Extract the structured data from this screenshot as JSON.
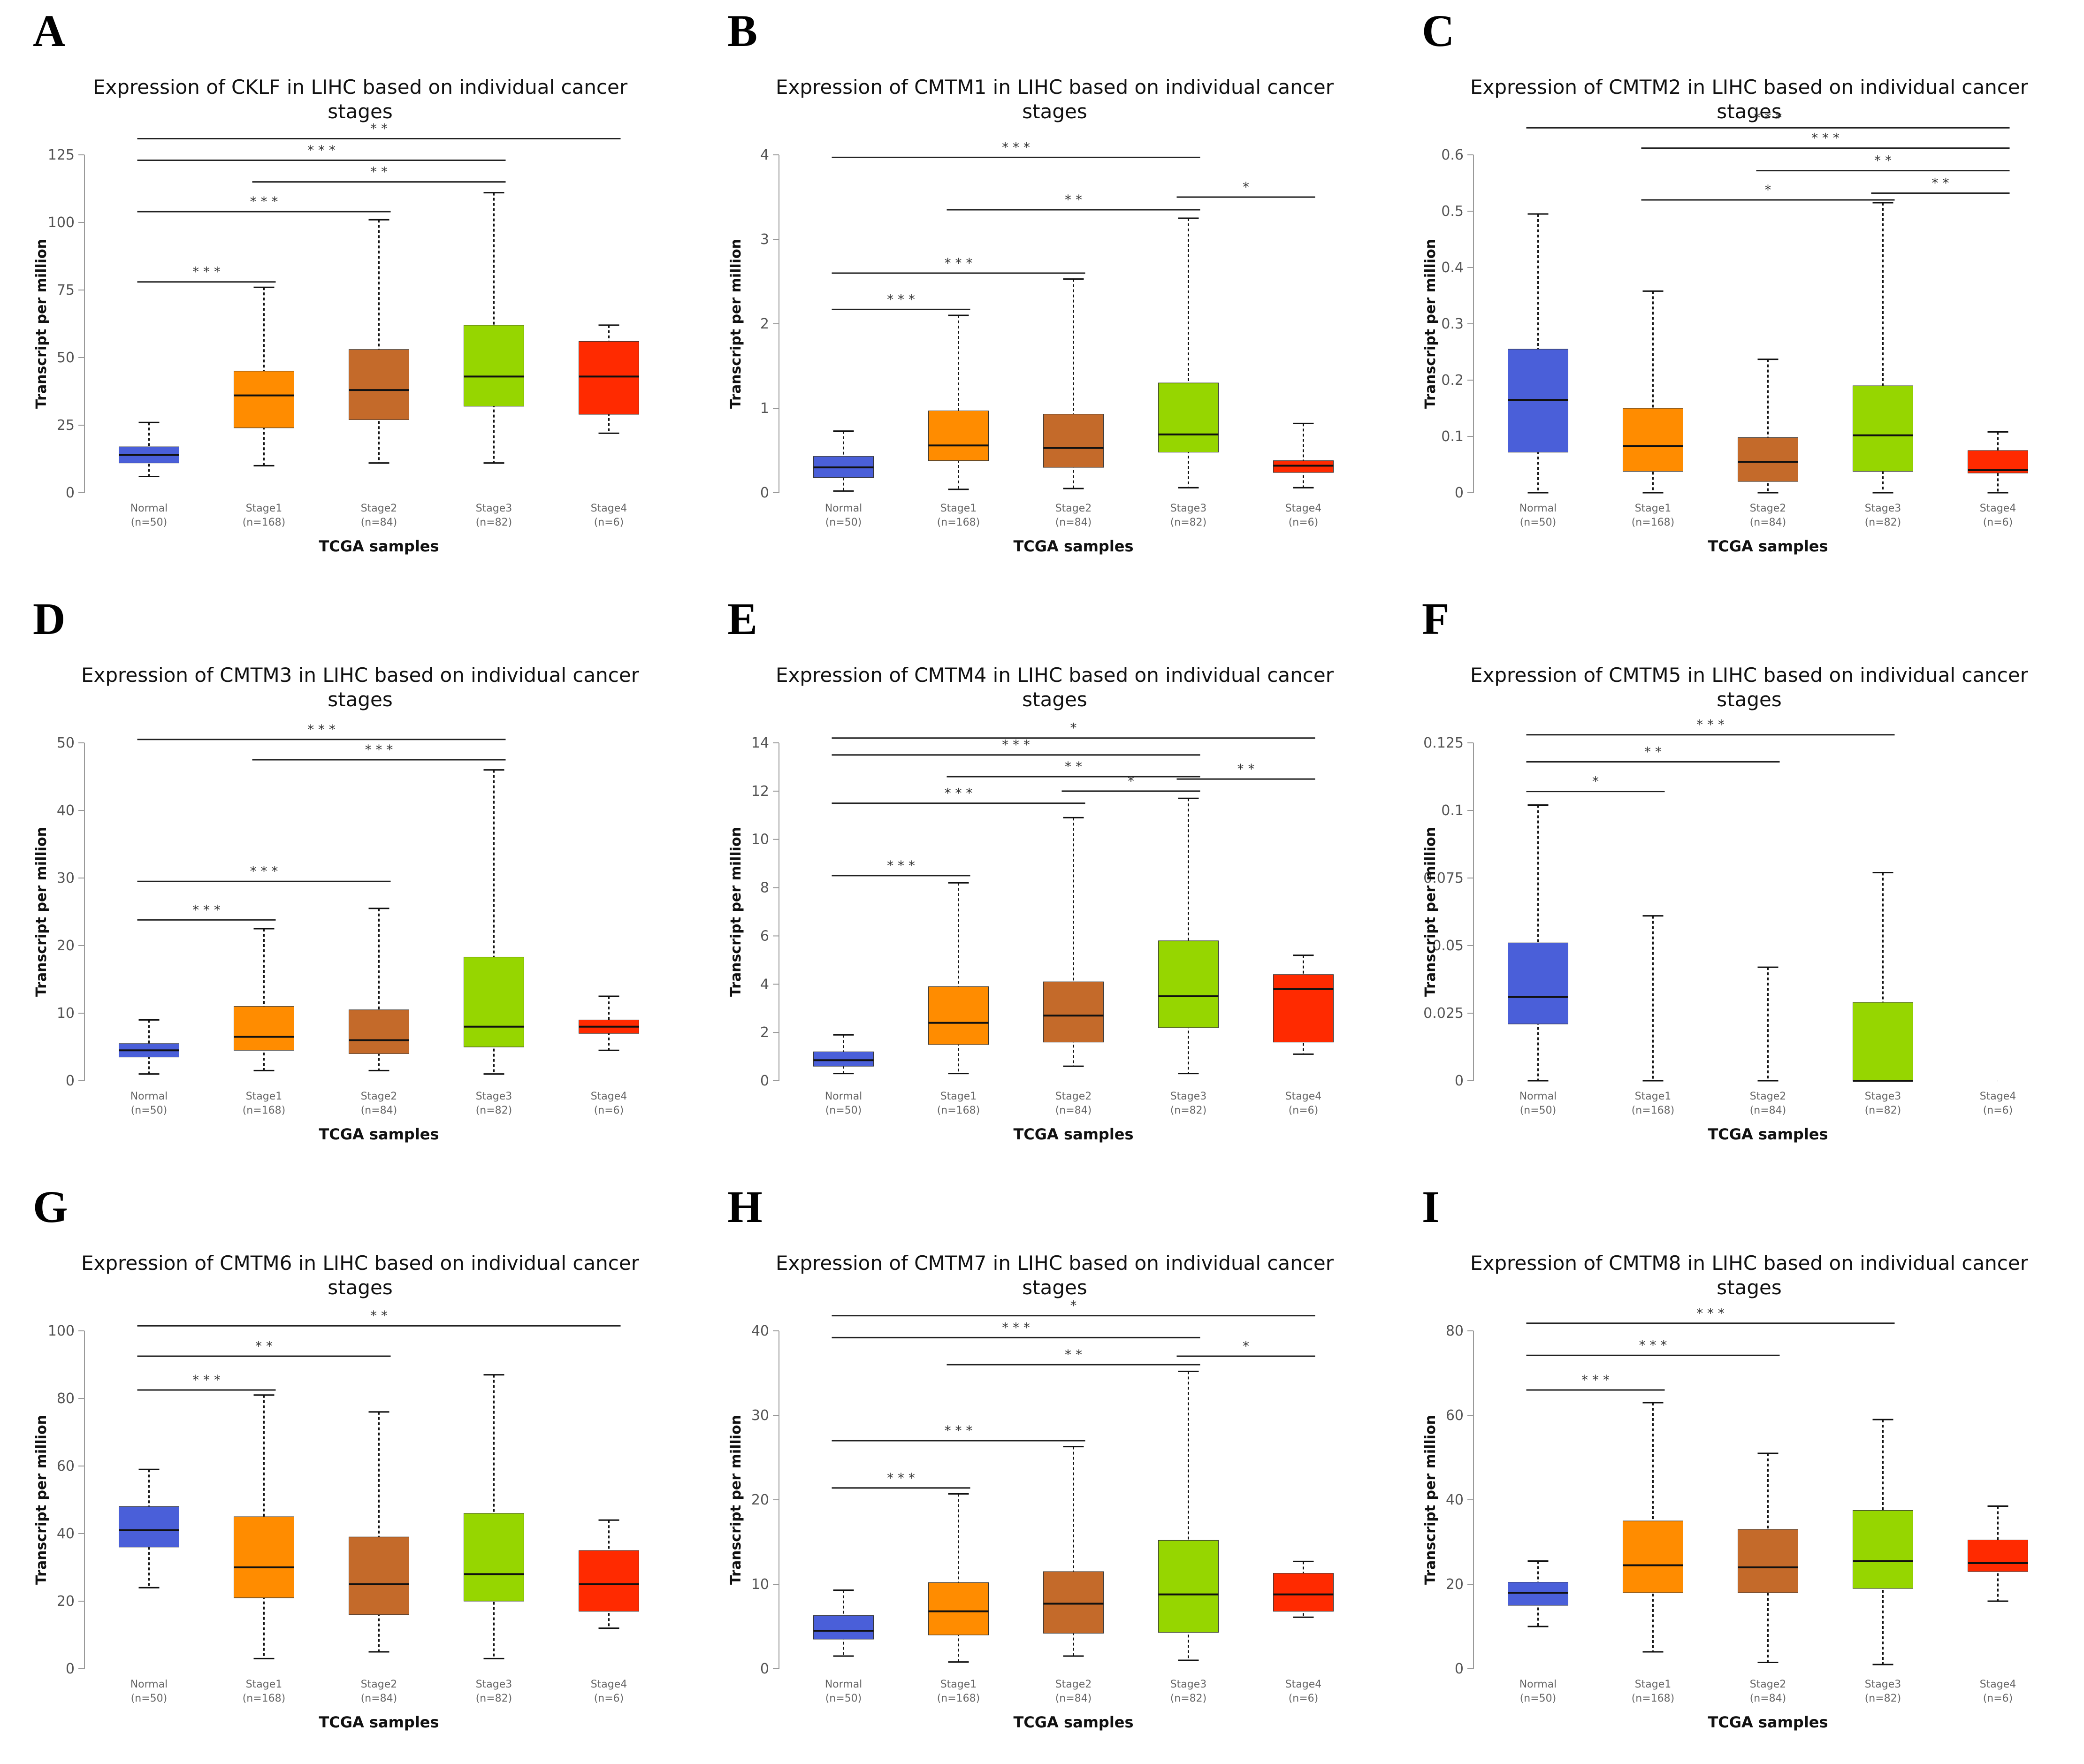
{
  "colors": {
    "Normal": "#4a5fd9",
    "Stage1": "#ff8c00",
    "Stage2": "#c46a2a",
    "Stage3": "#96d600",
    "Stage4": "#ff2a00"
  },
  "common": {
    "xlabel": "TCGA samples",
    "ylabel": "Transcript per million",
    "categories": [
      "Normal",
      "Stage1",
      "Stage2",
      "Stage3",
      "Stage4"
    ],
    "counts": [
      "(n=50)",
      "(n=168)",
      "(n=84)",
      "(n=82)",
      "(n=6)"
    ]
  },
  "chart_data": [
    {
      "panel": "A",
      "type": "box",
      "title_lines": [
        "Expression of CKLF in LIHC based on individual cancer",
        "stages"
      ],
      "ylim": [
        0,
        125
      ],
      "yticks": [
        "0",
        "25",
        "50",
        "75",
        "100",
        "125"
      ],
      "ytick_values": [
        0,
        25,
        50,
        75,
        100,
        125
      ],
      "boxes": [
        {
          "min": 6,
          "q1": 11,
          "median": 14,
          "q3": 17,
          "max": 26
        },
        {
          "min": 10,
          "q1": 24,
          "median": 36,
          "q3": 45,
          "max": 76
        },
        {
          "min": 11,
          "q1": 27,
          "median": 38,
          "q3": 53,
          "max": 101
        },
        {
          "min": 11,
          "q1": 32,
          "median": 43,
          "q3": 62,
          "max": 111
        },
        {
          "min": 22,
          "q1": 29,
          "median": 43,
          "q3": 56,
          "max": 62
        }
      ],
      "significance": [
        {
          "from": 0,
          "to": 4,
          "level": 131,
          "stars": "* *"
        },
        {
          "from": 0,
          "to": 3,
          "level": 123,
          "stars": "* * *"
        },
        {
          "from": 1,
          "to": 3,
          "level": 115,
          "stars": "* *"
        },
        {
          "from": 0,
          "to": 2,
          "level": 104,
          "stars": "* * *"
        },
        {
          "from": 0,
          "to": 1,
          "level": 78,
          "stars": "* * *"
        }
      ]
    },
    {
      "panel": "B",
      "type": "box",
      "title_lines": [
        "Expression of CMTM1 in LIHC based on individual cancer",
        "stages"
      ],
      "ylim": [
        0,
        4
      ],
      "yticks": [
        "0",
        "1",
        "2",
        "3",
        "4"
      ],
      "ytick_values": [
        0,
        1,
        2,
        3,
        4
      ],
      "boxes": [
        {
          "min": 0.02,
          "q1": 0.18,
          "median": 0.3,
          "q3": 0.43,
          "max": 0.73
        },
        {
          "min": 0.04,
          "q1": 0.38,
          "median": 0.56,
          "q3": 0.97,
          "max": 2.1
        },
        {
          "min": 0.05,
          "q1": 0.3,
          "median": 0.53,
          "q3": 0.93,
          "max": 2.53
        },
        {
          "min": 0.06,
          "q1": 0.48,
          "median": 0.69,
          "q3": 1.3,
          "max": 3.25
        },
        {
          "min": 0.06,
          "q1": 0.24,
          "median": 0.32,
          "q3": 0.38,
          "max": 0.82
        }
      ],
      "significance": [
        {
          "from": 0,
          "to": 3,
          "level": 3.97,
          "stars": "* * *"
        },
        {
          "from": 3,
          "to": 4,
          "level": 3.5,
          "stars": "*"
        },
        {
          "from": 1,
          "to": 3,
          "level": 3.35,
          "stars": "* *"
        },
        {
          "from": 0,
          "to": 2,
          "level": 2.6,
          "stars": "* * *"
        },
        {
          "from": 0,
          "to": 1,
          "level": 2.17,
          "stars": "* * *"
        }
      ]
    },
    {
      "panel": "C",
      "type": "box",
      "title_lines": [
        "Expression of CMTM2 in LIHC based on individual cancer",
        "stages"
      ],
      "ylim": [
        0,
        0.6
      ],
      "yticks": [
        "0",
        "0.1",
        "0.2",
        "0.3",
        "0.4",
        "0.5",
        "0.6"
      ],
      "ytick_values": [
        0,
        0.1,
        0.2,
        0.3,
        0.4,
        0.5,
        0.6
      ],
      "boxes": [
        {
          "min": 0,
          "q1": 0.072,
          "median": 0.165,
          "q3": 0.255,
          "max": 0.495
        },
        {
          "min": 0,
          "q1": 0.038,
          "median": 0.083,
          "q3": 0.15,
          "max": 0.358
        },
        {
          "min": 0,
          "q1": 0.02,
          "median": 0.055,
          "q3": 0.098,
          "max": 0.237
        },
        {
          "min": 0,
          "q1": 0.038,
          "median": 0.102,
          "q3": 0.19,
          "max": 0.515
        },
        {
          "min": 0,
          "q1": 0.035,
          "median": 0.04,
          "q3": 0.075,
          "max": 0.108
        }
      ],
      "significance": [
        {
          "from": 0,
          "to": 4,
          "level": 0.648,
          "stars": "* * *"
        },
        {
          "from": 1,
          "to": 4,
          "level": 0.612,
          "stars": "* * *"
        },
        {
          "from": 2,
          "to": 4,
          "level": 0.572,
          "stars": "* *"
        },
        {
          "from": 3,
          "to": 4,
          "level": 0.532,
          "stars": "* *"
        },
        {
          "from": 1,
          "to": 3,
          "level": 0.52,
          "stars": "*"
        }
      ]
    },
    {
      "panel": "D",
      "type": "box",
      "title_lines": [
        "Expression of CMTM3 in LIHC based on individual cancer",
        "stages"
      ],
      "ylim": [
        0,
        50
      ],
      "yticks": [
        "0",
        "10",
        "20",
        "30",
        "40",
        "50"
      ],
      "ytick_values": [
        0,
        10,
        20,
        30,
        40,
        50
      ],
      "boxes": [
        {
          "min": 1,
          "q1": 3.5,
          "median": 4.5,
          "q3": 5.5,
          "max": 9
        },
        {
          "min": 1.5,
          "q1": 4.5,
          "median": 6.5,
          "q3": 11,
          "max": 22.5
        },
        {
          "min": 1.5,
          "q1": 4,
          "median": 6,
          "q3": 10.5,
          "max": 25.5
        },
        {
          "min": 1,
          "q1": 5,
          "median": 8,
          "q3": 18.3,
          "max": 46
        },
        {
          "min": 4.5,
          "q1": 7,
          "median": 8,
          "q3": 9,
          "max": 12.5
        }
      ],
      "significance": [
        {
          "from": 0,
          "to": 3,
          "level": 50.5,
          "stars": "* * *"
        },
        {
          "from": 1,
          "to": 3,
          "level": 47.5,
          "stars": "* * *"
        },
        {
          "from": 0,
          "to": 2,
          "level": 29.5,
          "stars": "* * *"
        },
        {
          "from": 0,
          "to": 1,
          "level": 23.8,
          "stars": "* * *"
        }
      ]
    },
    {
      "panel": "E",
      "type": "box",
      "title_lines": [
        "Expression of CMTM4 in LIHC based on individual cancer",
        "stages"
      ],
      "ylim": [
        0,
        14
      ],
      "yticks": [
        "0",
        "2",
        "4",
        "6",
        "8",
        "10",
        "12",
        "14"
      ],
      "ytick_values": [
        0,
        2,
        4,
        6,
        8,
        10,
        12,
        14
      ],
      "boxes": [
        {
          "min": 0.3,
          "q1": 0.6,
          "median": 0.85,
          "q3": 1.2,
          "max": 1.9
        },
        {
          "min": 0.3,
          "q1": 1.5,
          "median": 2.4,
          "q3": 3.9,
          "max": 8.2
        },
        {
          "min": 0.6,
          "q1": 1.6,
          "median": 2.7,
          "q3": 4.1,
          "max": 10.9
        },
        {
          "min": 0.3,
          "q1": 2.2,
          "median": 3.5,
          "q3": 5.8,
          "max": 11.7
        },
        {
          "min": 1.1,
          "q1": 1.6,
          "median": 3.8,
          "q3": 4.4,
          "max": 5.2
        }
      ],
      "significance": [
        {
          "from": 0,
          "to": 4,
          "level": 14.2,
          "stars": "*"
        },
        {
          "from": 0,
          "to": 3,
          "level": 13.5,
          "stars": "* * *"
        },
        {
          "from": 1,
          "to": 3,
          "level": 12.6,
          "stars": "* *"
        },
        {
          "from": 2,
          "to": 3,
          "level": 12.0,
          "stars": "*"
        },
        {
          "from": 3,
          "to": 4,
          "level": 12.5,
          "stars": "* *"
        },
        {
          "from": 0,
          "to": 2,
          "level": 11.5,
          "stars": "* * *"
        },
        {
          "from": 0,
          "to": 1,
          "level": 8.5,
          "stars": "* * *"
        }
      ]
    },
    {
      "panel": "F",
      "type": "box",
      "title_lines": [
        "Expression of CMTM5 in LIHC based on individual cancer",
        "stages"
      ],
      "ylim": [
        0,
        0.125
      ],
      "yticks": [
        "0",
        "0.025",
        "0.05",
        "0.075",
        "0.1",
        "0.125"
      ],
      "ytick_values": [
        0,
        0.025,
        0.05,
        0.075,
        0.1,
        0.125
      ],
      "boxes": [
        {
          "min": 0,
          "q1": 0.021,
          "median": 0.031,
          "q3": 0.051,
          "max": 0.102
        },
        {
          "min": 0,
          "q1": 0,
          "median": 0,
          "q3": 0,
          "max": 0.061
        },
        {
          "min": 0,
          "q1": 0,
          "median": 0,
          "q3": 0,
          "max": 0.042
        },
        {
          "min": 0,
          "q1": 0,
          "median": 0,
          "q3": 0.029,
          "max": 0.077
        },
        {
          "min": 0,
          "q1": 0,
          "median": 0,
          "q3": 0,
          "max": 0
        }
      ],
      "significance": [
        {
          "from": 0,
          "to": 3,
          "level": 0.128,
          "stars": "* * *"
        },
        {
          "from": 0,
          "to": 2,
          "level": 0.118,
          "stars": "* *"
        },
        {
          "from": 0,
          "to": 1,
          "level": 0.107,
          "stars": "*"
        }
      ]
    },
    {
      "panel": "G",
      "type": "box",
      "title_lines": [
        "Expression of CMTM6 in LIHC based on individual cancer",
        "stages"
      ],
      "ylim": [
        0,
        100
      ],
      "yticks": [
        "0",
        "20",
        "40",
        "60",
        "80",
        "100"
      ],
      "ytick_values": [
        0,
        20,
        40,
        60,
        80,
        100
      ],
      "boxes": [
        {
          "min": 24,
          "q1": 36,
          "median": 41,
          "q3": 48,
          "max": 59
        },
        {
          "min": 3,
          "q1": 21,
          "median": 30,
          "q3": 45,
          "max": 81
        },
        {
          "min": 5,
          "q1": 16,
          "median": 25,
          "q3": 39,
          "max": 76
        },
        {
          "min": 3,
          "q1": 20,
          "median": 28,
          "q3": 46,
          "max": 87
        },
        {
          "min": 12,
          "q1": 17,
          "median": 25,
          "q3": 35,
          "max": 44
        }
      ],
      "significance": [
        {
          "from": 0,
          "to": 4,
          "level": 101.5,
          "stars": "* *"
        },
        {
          "from": 0,
          "to": 2,
          "level": 92.5,
          "stars": "* *"
        },
        {
          "from": 0,
          "to": 1,
          "level": 82.5,
          "stars": "* * *"
        }
      ]
    },
    {
      "panel": "H",
      "type": "box",
      "title_lines": [
        "Expression of CMTM7 in LIHC based on individual cancer",
        "stages"
      ],
      "ylim": [
        0,
        40
      ],
      "yticks": [
        "0",
        "10",
        "20",
        "30",
        "40"
      ],
      "ytick_values": [
        0,
        10,
        20,
        30,
        40
      ],
      "boxes": [
        {
          "min": 1.5,
          "q1": 3.5,
          "median": 4.5,
          "q3": 6.3,
          "max": 9.3
        },
        {
          "min": 0.8,
          "q1": 4,
          "median": 6.8,
          "q3": 10.2,
          "max": 20.7
        },
        {
          "min": 1.5,
          "q1": 4.2,
          "median": 7.7,
          "q3": 11.5,
          "max": 26.3
        },
        {
          "min": 1,
          "q1": 4.3,
          "median": 8.8,
          "q3": 15.2,
          "max": 35.2
        },
        {
          "min": 6.1,
          "q1": 6.8,
          "median": 8.8,
          "q3": 11.3,
          "max": 12.7
        }
      ],
      "significance": [
        {
          "from": 0,
          "to": 4,
          "level": 41.8,
          "stars": "*"
        },
        {
          "from": 0,
          "to": 3,
          "level": 39.2,
          "stars": "* * *"
        },
        {
          "from": 1,
          "to": 3,
          "level": 36,
          "stars": "* *"
        },
        {
          "from": 3,
          "to": 4,
          "level": 37,
          "stars": "*"
        },
        {
          "from": 0,
          "to": 2,
          "level": 27,
          "stars": "* * *"
        },
        {
          "from": 0,
          "to": 1,
          "level": 21.4,
          "stars": "* * *"
        }
      ]
    },
    {
      "panel": "I",
      "type": "box",
      "title_lines": [
        "Expression of CMTM8 in LIHC based on individual cancer",
        "stages"
      ],
      "ylim": [
        0,
        80
      ],
      "yticks": [
        "0",
        "20",
        "40",
        "60",
        "80"
      ],
      "ytick_values": [
        0,
        20,
        40,
        60,
        80
      ],
      "boxes": [
        {
          "min": 10,
          "q1": 15,
          "median": 18,
          "q3": 20.5,
          "max": 25.5
        },
        {
          "min": 4,
          "q1": 18,
          "median": 24.5,
          "q3": 35,
          "max": 63
        },
        {
          "min": 1.5,
          "q1": 18,
          "median": 24,
          "q3": 33,
          "max": 51
        },
        {
          "min": 1,
          "q1": 19,
          "median": 25.5,
          "q3": 37.5,
          "max": 59
        },
        {
          "min": 16,
          "q1": 23,
          "median": 25,
          "q3": 30.5,
          "max": 38.5
        }
      ],
      "significance": [
        {
          "from": 0,
          "to": 3,
          "level": 81.8,
          "stars": "* * *"
        },
        {
          "from": 0,
          "to": 2,
          "level": 74.2,
          "stars": "* * *"
        },
        {
          "from": 0,
          "to": 1,
          "level": 66,
          "stars": "* * *"
        }
      ]
    }
  ]
}
